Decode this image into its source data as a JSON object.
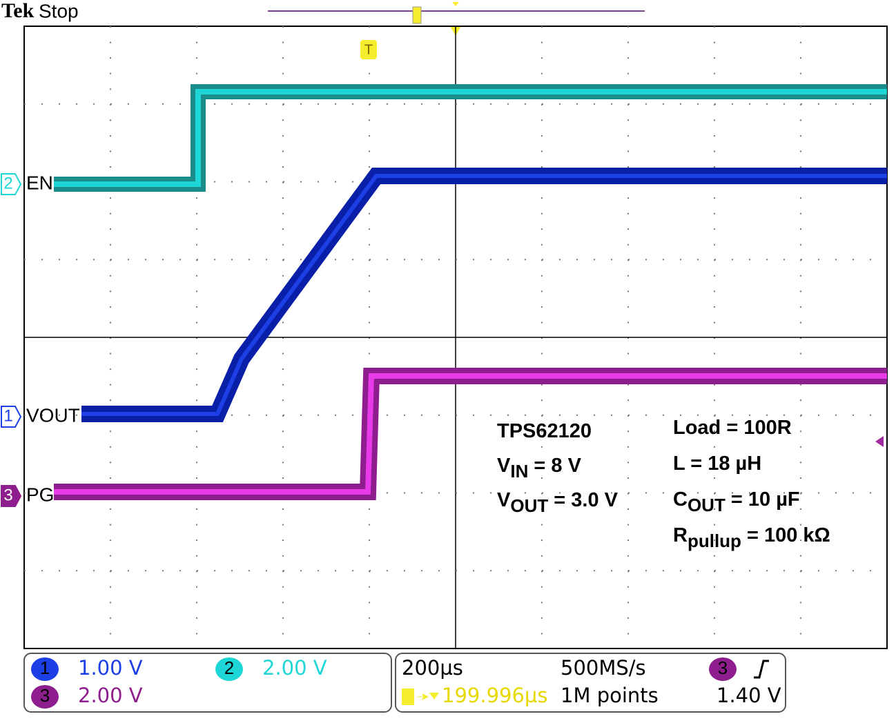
{
  "header": {
    "brand": "Tek",
    "status": "Stop"
  },
  "markers": [
    {
      "number": "2",
      "label": "EN"
    },
    {
      "number": "1",
      "label": "VOUT"
    },
    {
      "number": "3",
      "label": "PG"
    }
  ],
  "trigger_marker": "T",
  "annotations": {
    "left": [
      {
        "main": "TPS62120"
      },
      {
        "main": "V",
        "sub": "IN",
        "rest": " = 8 V"
      },
      {
        "main": "V",
        "sub": "OUT",
        "rest": " = 3.0 V"
      }
    ],
    "right": [
      {
        "main": "Load = 100R"
      },
      {
        "main": "L = 18 µH"
      },
      {
        "main": "C",
        "sub": "OUT",
        "rest": " = 10 µF"
      },
      {
        "main": "R",
        "sub": "pullup",
        "rest": " = 100 kΩ"
      }
    ]
  },
  "status_bar": {
    "channels": [
      {
        "number": "1",
        "scale": "1.00 V"
      },
      {
        "number": "2",
        "scale": "2.00 V"
      },
      {
        "number": "3",
        "scale": "2.00 V"
      }
    ],
    "timebase": "200µs",
    "sample_rate": "500MS/s",
    "trigger_source": "3",
    "trigger_position": "199.996µs",
    "record_length": "1M points",
    "trigger_level": "1.40 V"
  }
}
